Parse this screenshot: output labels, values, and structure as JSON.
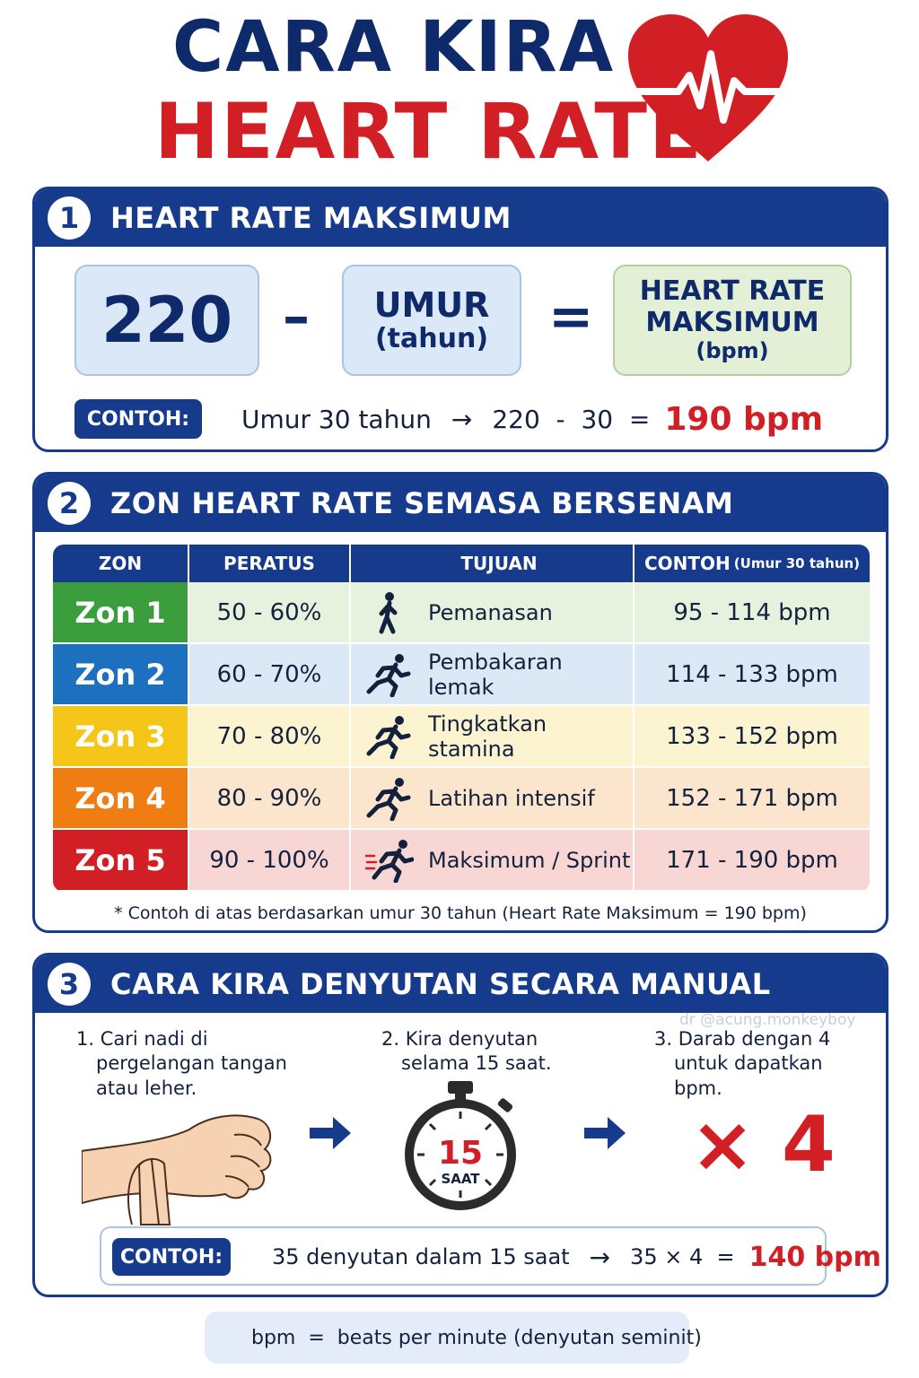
{
  "header": {
    "title_line1": "CARA KIRA",
    "title_line2": "HEART RATE",
    "heart_icon": "heart-pulse-icon"
  },
  "section1": {
    "number": "1",
    "title": "HEART RATE MAKSIMUM",
    "formula": {
      "constant": "220",
      "minus": "–",
      "age_label": "UMUR",
      "age_unit": "(tahun)",
      "equals": "=",
      "result_line1": "HEART RATE",
      "result_line2": "MAKSIMUM",
      "result_unit": "(bpm)"
    },
    "example": {
      "badge": "CONTOH:",
      "text": "Umur 30 tahun",
      "arrow": "→",
      "calc": "220  -  30  =",
      "result": "190 bpm"
    }
  },
  "section2": {
    "number": "2",
    "title": "ZON HEART RATE SEMASA BERSENAM",
    "columns": {
      "zon": "ZON",
      "peratus": "PERATUS",
      "tujuan": "TUJUAN",
      "contoh": "CONTOH",
      "contoh_note": "(Umur 30 tahun)"
    },
    "rows": [
      {
        "zon": "Zon 1",
        "peratus": "50 - 60%",
        "tujuan": "Pemanasan",
        "contoh": "95 - 114 bpm",
        "color": "#3a9e3d",
        "bg": "#e6f2dd"
      },
      {
        "zon": "Zon 2",
        "peratus": "60 - 70%",
        "tujuan": "Pembakaran lemak",
        "contoh": "114 - 133 bpm",
        "color": "#1d6fc0",
        "bg": "#dbe9f7"
      },
      {
        "zon": "Zon 3",
        "peratus": "70 - 80%",
        "tujuan": "Tingkatkan stamina",
        "contoh": "133 - 152 bpm",
        "color": "#f5c518",
        "bg": "#fcf4d0"
      },
      {
        "zon": "Zon 4",
        "peratus": "80 - 90%",
        "tujuan": "Latihan intensif",
        "contoh": "152 - 171 bpm",
        "color": "#f07d12",
        "bg": "#fbe5cc"
      },
      {
        "zon": "Zon 5",
        "peratus": "90 - 100%",
        "tujuan": "Maksimum / Sprint",
        "contoh": "171 - 190 bpm",
        "color": "#d21f26",
        "bg": "#f8d6d3"
      }
    ],
    "note": "* Contoh di atas berdasarkan umur 30 tahun (Heart Rate Maksimum = 190 bpm)"
  },
  "section3": {
    "number": "3",
    "title": "CARA KIRA DENYUTAN SECARA MANUAL",
    "watermark": "dr @acung.monkeyboy",
    "steps": [
      {
        "text1": "1. Cari nadi di",
        "text2": "pergelangan tangan",
        "text3": "atau leher."
      },
      {
        "text1": "2. Kira denyutan",
        "text2": "selama 15 saat.",
        "text3": ""
      },
      {
        "text1": "3. Darab dengan 4",
        "text2": "untuk dapatkan",
        "text3": "bpm."
      }
    ],
    "stopwatch_number": "15",
    "stopwatch_unit": "SAAT",
    "multiplier": "× 4",
    "example": {
      "badge": "CONTOH:",
      "text": "35 denyutan dalam 15 saat",
      "arrow": "→",
      "calc": "35 × 4  =",
      "result": "140 bpm"
    }
  },
  "footer": {
    "icon": "lightbulb-icon",
    "text": "bpm  =  beats per minute (denyutan seminit)"
  }
}
